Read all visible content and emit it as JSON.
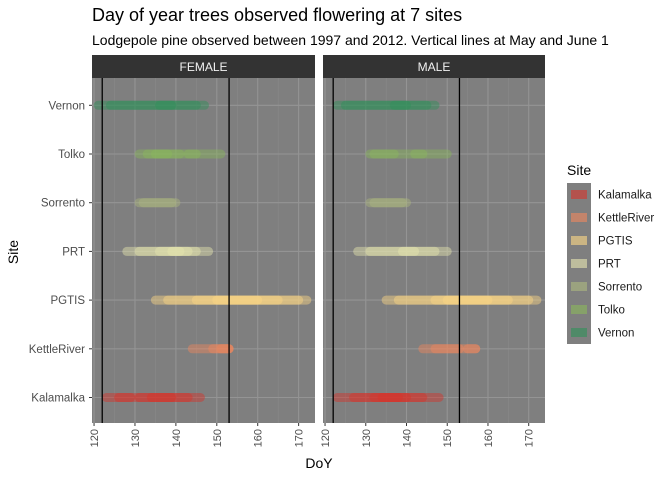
{
  "chart_data": {
    "type": "range-strip",
    "title": "Day of year trees observed flowering at 7 sites",
    "subtitle": "Lodgepole pine observed between 1997 and 2012. Vertical lines at May and June 1",
    "xlabel": "DoY",
    "ylabel": "Site",
    "xlim": [
      119.5,
      174
    ],
    "x_ticks": [
      120,
      130,
      140,
      150,
      160,
      170
    ],
    "vlines": [
      122,
      153
    ],
    "panels": [
      "FEMALE",
      "MALE"
    ],
    "categories": [
      "Kalamalka",
      "KettleRiver",
      "PGTIS",
      "PRT",
      "Sorrento",
      "Tolko",
      "Vernon"
    ],
    "legend": {
      "title": "Site",
      "position": "right"
    },
    "colors": {
      "Kalamalka": "#d7342b",
      "KettleRiver": "#f0875d",
      "PGTIS": "#fdd885",
      "PRT": "#e7e6b0",
      "Sorrento": "#adb97e",
      "Tolko": "#8ab85a",
      "Vernon": "#2e9158"
    },
    "series": [
      {
        "name": "Kalamalka",
        "panel": "FEMALE",
        "segments": [
          [
            123,
            129
          ],
          [
            126,
            146
          ],
          [
            131,
            143
          ],
          [
            134,
            139
          ]
        ]
      },
      {
        "name": "KettleRiver",
        "panel": "FEMALE",
        "segments": [
          [
            144,
            153
          ],
          [
            149,
            153
          ],
          [
            151,
            153
          ]
        ]
      },
      {
        "name": "PGTIS",
        "panel": "FEMALE",
        "segments": [
          [
            135,
            172
          ],
          [
            138,
            170
          ],
          [
            145,
            165
          ],
          [
            150,
            160
          ]
        ]
      },
      {
        "name": "PRT",
        "panel": "FEMALE",
        "segments": [
          [
            128,
            148
          ],
          [
            131,
            145
          ],
          [
            136,
            143
          ],
          [
            139,
            141
          ]
        ]
      },
      {
        "name": "Sorrento",
        "panel": "FEMALE",
        "segments": [
          [
            131,
            140
          ],
          [
            132,
            139
          ]
        ]
      },
      {
        "name": "Tolko",
        "panel": "FEMALE",
        "segments": [
          [
            131,
            151
          ],
          [
            133,
            141
          ],
          [
            135,
            138
          ],
          [
            143,
            145
          ]
        ]
      },
      {
        "name": "Vernon",
        "panel": "FEMALE",
        "segments": [
          [
            121,
            147
          ],
          [
            124,
            145
          ],
          [
            136,
            139
          ]
        ]
      },
      {
        "name": "Kalamalka",
        "panel": "MALE",
        "segments": [
          [
            123,
            148
          ],
          [
            127,
            144
          ],
          [
            132,
            140
          ],
          [
            134,
            138
          ]
        ]
      },
      {
        "name": "KettleRiver",
        "panel": "MALE",
        "segments": [
          [
            144,
            157
          ],
          [
            147,
            153
          ],
          [
            155,
            157
          ]
        ]
      },
      {
        "name": "PGTIS",
        "panel": "MALE",
        "segments": [
          [
            135,
            172
          ],
          [
            138,
            170
          ],
          [
            147,
            165
          ],
          [
            150,
            160
          ]
        ]
      },
      {
        "name": "PRT",
        "panel": "MALE",
        "segments": [
          [
            128,
            150
          ],
          [
            131,
            147
          ],
          [
            139,
            142
          ]
        ]
      },
      {
        "name": "Sorrento",
        "panel": "MALE",
        "segments": [
          [
            131,
            140
          ],
          [
            132,
            139
          ]
        ]
      },
      {
        "name": "Tolko",
        "panel": "MALE",
        "segments": [
          [
            131,
            150
          ],
          [
            132,
            137
          ],
          [
            142,
            144
          ]
        ]
      },
      {
        "name": "Vernon",
        "panel": "MALE",
        "segments": [
          [
            123,
            147
          ],
          [
            125,
            145
          ],
          [
            137,
            140
          ]
        ]
      }
    ]
  }
}
